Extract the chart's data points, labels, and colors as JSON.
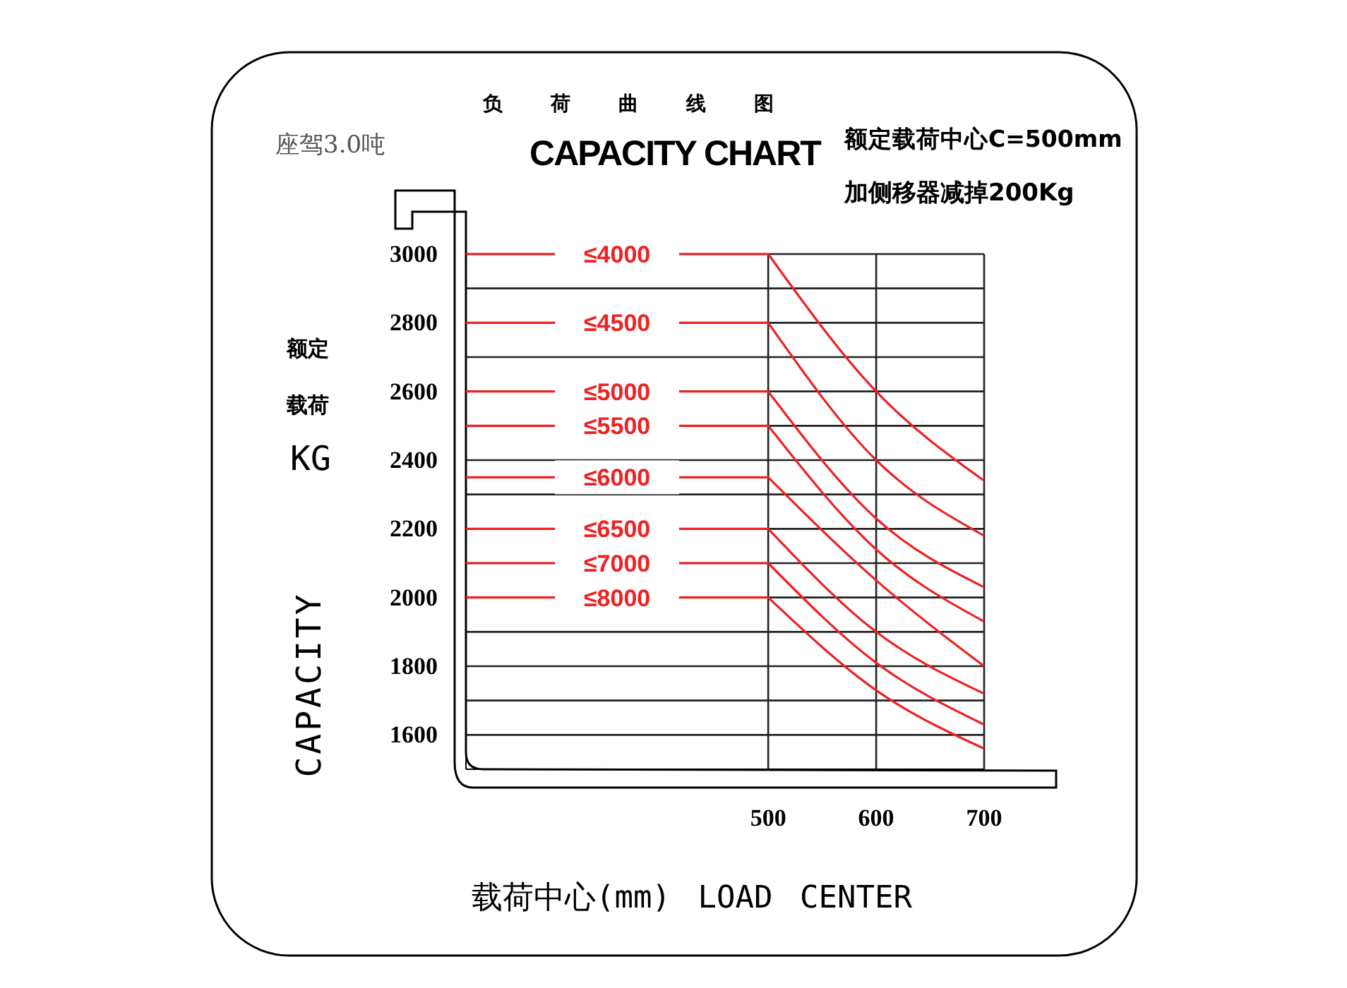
{
  "chart_data": {
    "type": "line",
    "title": "CAPACITY CHART",
    "subtitle": "负荷曲线图",
    "xlabel": "载荷中心(mm) LOAD CENTER",
    "ylabel": "CAPACITY",
    "annotations": [
      "座驾3.0吨",
      "额定载荷中心C=500mm",
      "加侧移器减掉200Kg",
      "额定",
      "载荷",
      "KG"
    ],
    "x": [
      220,
      500,
      600,
      700
    ],
    "xlim": [
      220,
      700
    ],
    "xticks": [
      500,
      600,
      700
    ],
    "ylim": [
      1500,
      3000
    ],
    "yticks": [
      1600,
      {
        "value": 1700,
        "label": null
      },
      1800,
      {
        "value": 1900,
        "label": null
      },
      2000,
      {
        "value": 2100,
        "label": null
      },
      2200,
      {
        "value": 2300,
        "label": null
      },
      2400,
      {
        "value": 2500,
        "label": null
      },
      2600,
      {
        "value": 2700,
        "label": null
      },
      2800,
      {
        "value": 2900,
        "label": null
      },
      3000
    ],
    "grid": true,
    "legend": false,
    "marker": "none",
    "line_style": "solid",
    "series": [
      {
        "name": "≤4000",
        "color": "#ee2222",
        "values": [
          3000,
          3000,
          2600,
          2340
        ]
      },
      {
        "name": "≤4500",
        "color": "#ee2222",
        "values": [
          2800,
          2800,
          2400,
          2180
        ]
      },
      {
        "name": "≤5000",
        "color": "#ee2222",
        "values": [
          2600,
          2600,
          2230,
          2030
        ]
      },
      {
        "name": "≤5500",
        "color": "#ee2222",
        "values": [
          2500,
          2500,
          2140,
          1930
        ]
      },
      {
        "name": "≤6000",
        "color": "#ee2222",
        "values": [
          2350,
          2350,
          2050,
          1800
        ]
      },
      {
        "name": "≤6500",
        "color": "#ee2222",
        "values": [
          2200,
          2200,
          1900,
          1720
        ]
      },
      {
        "name": "≤7000",
        "color": "#ee2222",
        "values": [
          2100,
          2100,
          1810,
          1630
        ]
      },
      {
        "name": "≤8000",
        "color": "#ee2222",
        "values": [
          2000,
          2000,
          1730,
          1560
        ]
      }
    ]
  }
}
